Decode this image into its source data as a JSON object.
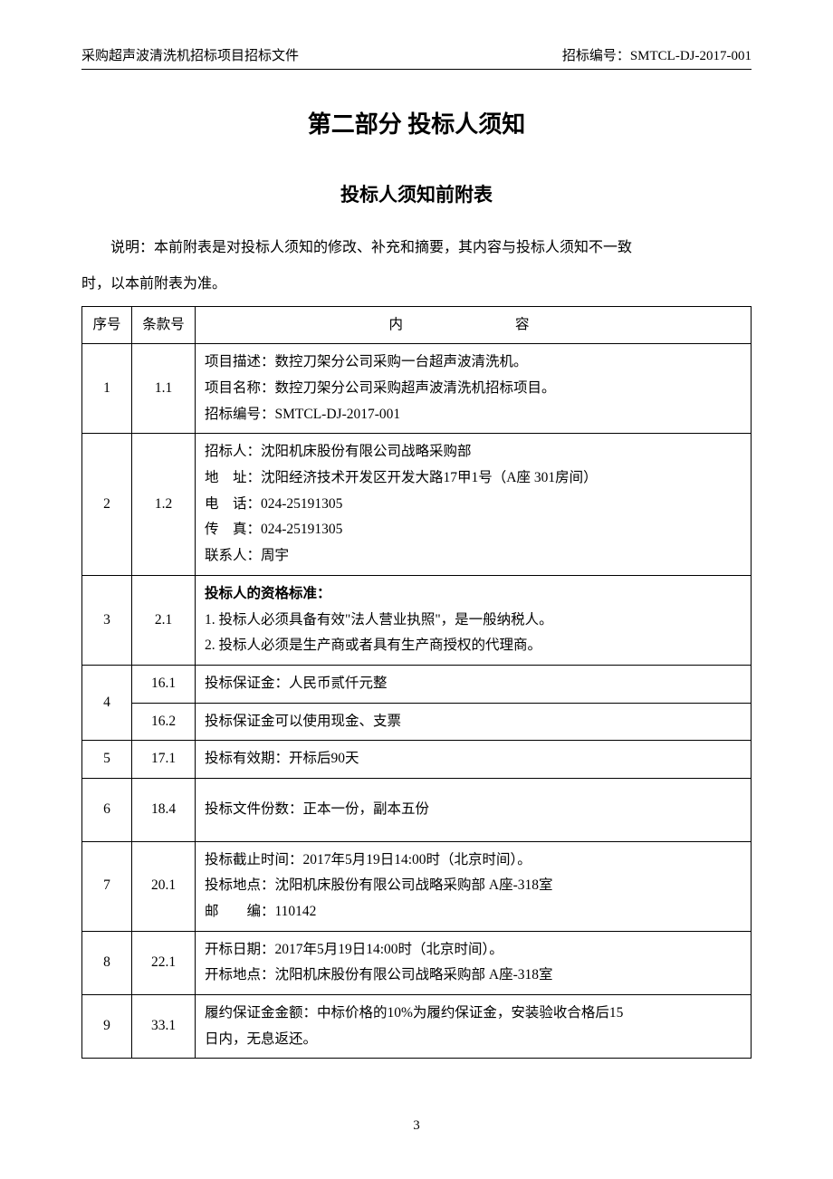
{
  "header": {
    "left": "采购超声波清洗机招标项目招标文件",
    "right": "招标编号：SMTCL-DJ-2017-001"
  },
  "main_title": "第二部分  投标人须知",
  "sub_title": "投标人须知前附表",
  "description_line1": "说明：本前附表是对投标人须知的修改、补充和摘要，其内容与投标人须知不一致",
  "description_line2": "时，以本前附表为准。",
  "table": {
    "headers": {
      "seq": "序号",
      "clause": "条款号",
      "content": "内　　容"
    },
    "rows": [
      {
        "seq": "1",
        "clause": "1.1",
        "content_lines": [
          "项目描述：数控刀架分公司采购一台超声波清洗机。",
          "项目名称：数控刀架分公司采购超声波清洗机招标项目。",
          "招标编号：SMTCL-DJ-2017-001"
        ]
      },
      {
        "seq": "2",
        "clause": "1.2",
        "content_lines": [
          "招标人：沈阳机床股份有限公司战略采购部",
          "地　址：沈阳经济技术开发区开发大路17甲1号（A座 301房间）",
          "电　话：024-25191305",
          "传　真：024-25191305",
          "联系人：周宇"
        ]
      },
      {
        "seq": "3",
        "clause": "2.1",
        "bold_first": true,
        "content_lines": [
          "投标人的资格标准：",
          "1.  投标人必须具备有效\"法人营业执照\"，是一般纳税人。",
          "2.  投标人必须是生产商或者具有生产商授权的代理商。"
        ]
      },
      {
        "seq": "4",
        "multi_clause": true,
        "sub_rows": [
          {
            "clause": "16.1",
            "content": "投标保证金：人民币贰仟元整"
          },
          {
            "clause": "16.2",
            "content": "投标保证金可以使用现金、支票"
          }
        ]
      },
      {
        "seq": "5",
        "clause": "17.1",
        "content_lines": [
          "投标有效期：开标后90天"
        ]
      },
      {
        "seq": "6",
        "clause": "18.4",
        "tall": true,
        "content_lines": [
          "投标文件份数：正本一份，副本五份"
        ]
      },
      {
        "seq": "7",
        "clause": "20.1",
        "content_lines": [
          "投标截止时间：2017年5月19日14:00时（北京时间）。",
          "投标地点：沈阳机床股份有限公司战略采购部 A座-318室",
          "邮　　编：110142"
        ]
      },
      {
        "seq": "8",
        "clause": "22.1",
        "content_lines": [
          "开标日期：2017年5月19日14:00时（北京时间）。",
          "开标地点：沈阳机床股份有限公司战略采购部 A座-318室"
        ]
      },
      {
        "seq": "9",
        "clause": "33.1",
        "content_lines": [
          "履约保证金金额：中标价格的10%为履约保证金，安装验收合格后15",
          "日内，无息返还。"
        ]
      }
    ]
  },
  "page_number": "3"
}
